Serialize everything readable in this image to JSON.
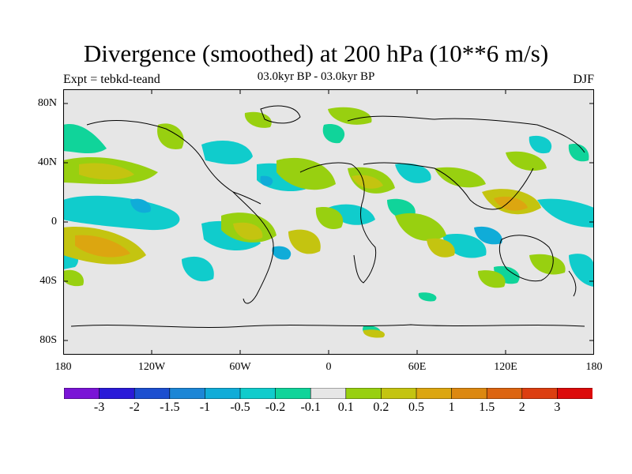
{
  "title": "Divergence (smoothed) at 200 hPa (10**6 m/s)",
  "subtitle_left": "Expt = tebkd-teand",
  "subtitle_center": "03.0kyr BP - 03.0kyr BP",
  "subtitle_right": "DJF",
  "colors": {
    "background_land": "#e6e6e6",
    "coast": "#000000"
  },
  "lat_ticks": [
    "80N",
    "40N",
    "0",
    "40S",
    "80S"
  ],
  "lon_ticks": [
    "180",
    "120W",
    "60W",
    "0",
    "60E",
    "120E",
    "180"
  ],
  "colorbar": {
    "colors": [
      "#7a14d6",
      "#2a1ad8",
      "#1c4fd0",
      "#1c86d6",
      "#10acd8",
      "#10cccc",
      "#10d49a",
      "#e6e6e6",
      "#98d010",
      "#c4c410",
      "#dca610",
      "#dc8810",
      "#dc6410",
      "#dc3e10",
      "#dc0a0a"
    ],
    "labels": [
      "-3",
      "-2",
      "-1.5",
      "-1",
      "-0.5",
      "-0.2",
      "-0.1",
      "0.1",
      "0.2",
      "0.5",
      "1",
      "1.5",
      "2",
      "3"
    ]
  }
}
